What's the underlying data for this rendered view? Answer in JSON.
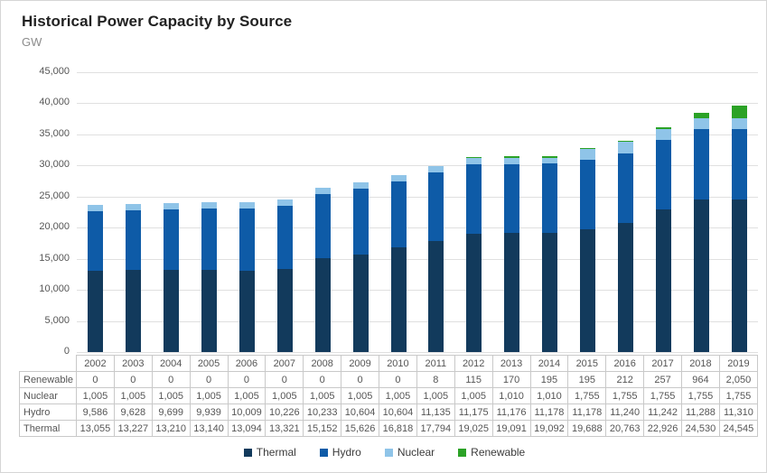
{
  "header": {
    "title": "Historical Power Capacity by Source",
    "subtitle": "GW"
  },
  "chart_data": {
    "type": "bar",
    "stacked": true,
    "title": "Historical Power Capacity by Source",
    "ylabel": "GW",
    "xlabel": "",
    "ylim": [
      0,
      45000
    ],
    "ytick_step": 5000,
    "grid": true,
    "legend_position": "bottom",
    "data_table_shown": true,
    "categories": [
      "2002",
      "2003",
      "2004",
      "2005",
      "2006",
      "2007",
      "2008",
      "2009",
      "2010",
      "2011",
      "2012",
      "2013",
      "2014",
      "2015",
      "2016",
      "2017",
      "2018",
      "2019"
    ],
    "series": [
      {
        "name": "Thermal",
        "color": "#123a5c",
        "values": [
          13055,
          13227,
          13210,
          13140,
          13094,
          13321,
          15152,
          15626,
          16818,
          17794,
          19025,
          19091,
          19092,
          19688,
          20763,
          22926,
          24530,
          24545
        ]
      },
      {
        "name": "Hydro",
        "color": "#0e5ba7",
        "values": [
          9586,
          9628,
          9699,
          9939,
          10009,
          10226,
          10233,
          10604,
          10604,
          11135,
          11175,
          11176,
          11178,
          11178,
          11240,
          11242,
          11288,
          11310
        ]
      },
      {
        "name": "Nuclear",
        "color": "#8fc4e8",
        "values": [
          1005,
          1005,
          1005,
          1005,
          1005,
          1005,
          1005,
          1005,
          1005,
          1005,
          1005,
          1010,
          1010,
          1755,
          1755,
          1755,
          1755,
          1755
        ]
      },
      {
        "name": "Renewable",
        "color": "#2ba226",
        "values": [
          0,
          0,
          0,
          0,
          0,
          0,
          0,
          0,
          0,
          8,
          115,
          170,
          195,
          195,
          212,
          257,
          964,
          2050
        ]
      }
    ],
    "table_rows_order": [
      "Renewable",
      "Nuclear",
      "Hydro",
      "Thermal"
    ],
    "ytick_labels": [
      "0",
      "5,000",
      "10,000",
      "15,000",
      "20,000",
      "25,000",
      "30,000",
      "35,000",
      "40,000",
      "45,000"
    ]
  }
}
